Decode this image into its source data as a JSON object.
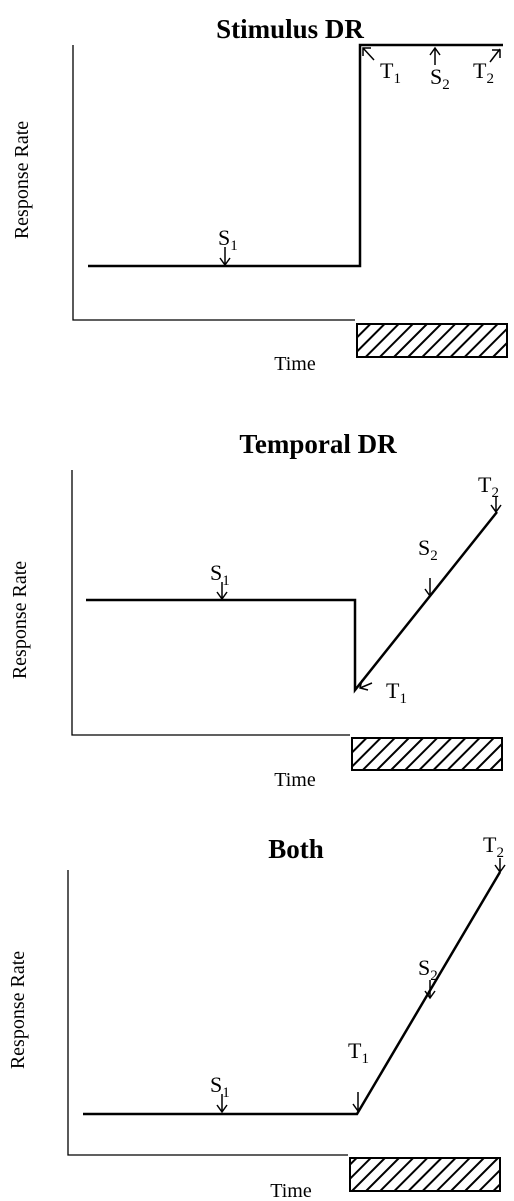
{
  "panels": [
    {
      "title": "Stimulus DR",
      "y_label": "Response Rate",
      "x_label": "Time",
      "markers": [
        {
          "base": "S",
          "sub": "1"
        },
        {
          "base": "T",
          "sub": "1"
        },
        {
          "base": "S",
          "sub": "2"
        },
        {
          "base": "T",
          "sub": "2"
        }
      ]
    },
    {
      "title": "Temporal DR",
      "y_label": "Response Rate",
      "x_label": "Time",
      "markers": [
        {
          "base": "S",
          "sub": "1"
        },
        {
          "base": "T",
          "sub": "1"
        },
        {
          "base": "S",
          "sub": "2"
        },
        {
          "base": "T",
          "sub": "2"
        }
      ]
    },
    {
      "title": "Both",
      "y_label": "Response Rate",
      "x_label": "Time",
      "markers": [
        {
          "base": "S",
          "sub": "1"
        },
        {
          "base": "T",
          "sub": "1"
        },
        {
          "base": "S",
          "sub": "2"
        },
        {
          "base": "T",
          "sub": "2"
        }
      ]
    }
  ]
}
